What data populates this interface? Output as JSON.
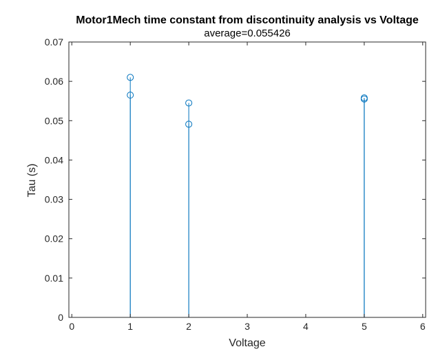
{
  "chart_data": {
    "type": "stem",
    "title": "Motor1Mech time constant from discontinuity analysis vs Voltage",
    "subtitle": "average=0.055426",
    "xlabel": "Voltage",
    "ylabel": "Tau (s)",
    "xlim": [
      -0.05,
      6.05
    ],
    "ylim": [
      0,
      0.07
    ],
    "xticks": [
      "0",
      "1",
      "2",
      "3",
      "4",
      "5",
      "6"
    ],
    "yticks": [
      "0",
      "0.01",
      "0.02",
      "0.03",
      "0.04",
      "0.05",
      "0.06",
      "0.07"
    ],
    "marker": "circle",
    "color": "#0072BD",
    "axis_color": "#262626",
    "grid": false,
    "points": [
      {
        "x": 1,
        "y": 0.061
      },
      {
        "x": 1,
        "y": 0.0565
      },
      {
        "x": 2,
        "y": 0.0545
      },
      {
        "x": 2,
        "y": 0.0491
      },
      {
        "x": 5,
        "y": 0.0558
      },
      {
        "x": 5,
        "y": 0.0555
      }
    ]
  }
}
